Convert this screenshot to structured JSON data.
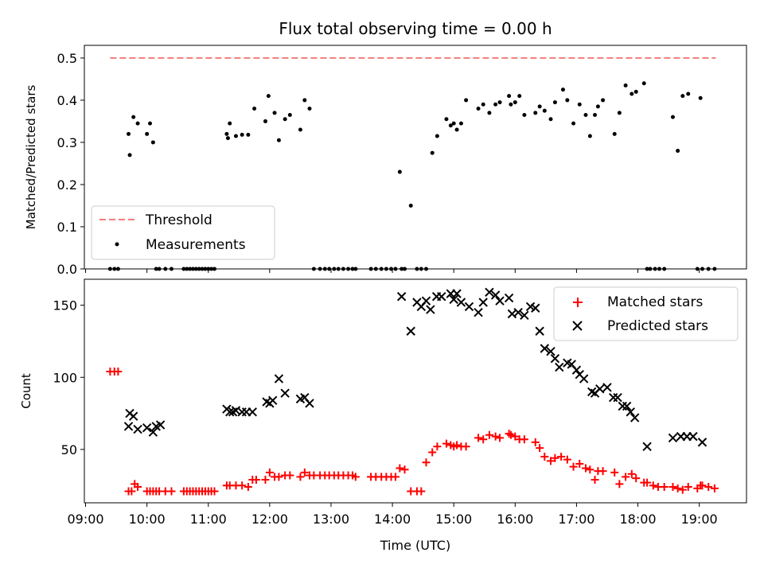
{
  "title": "Flux total observing time = 0.00 h",
  "chart_data": [
    {
      "type": "scatter",
      "title": "Flux total observing time = 0.00 h",
      "xlabel": "",
      "ylabel": "Matched/Predicted stars",
      "xlim": [
        8.98,
        19.77
      ],
      "ylim": [
        0,
        0.53
      ],
      "yticks": [
        0.0,
        0.1,
        0.2,
        0.3,
        0.4,
        0.5
      ],
      "ytick_labels": [
        "0.0",
        "0.1",
        "0.2",
        "0.3",
        "0.4",
        "0.5"
      ],
      "legend": {
        "placement": "lower-left",
        "entries": [
          "Threshold",
          "Measurements"
        ]
      },
      "threshold": {
        "name": "Threshold",
        "value": 0.5,
        "x_range": [
          9.4,
          19.27
        ],
        "color": "#f47c7c"
      },
      "series": [
        {
          "name": "Measurements",
          "color": "#000000",
          "x": [
            9.4,
            9.47,
            9.53,
            9.7,
            9.72,
            9.78,
            9.85,
            10.0,
            10.05,
            10.1,
            10.15,
            10.2,
            10.3,
            10.4,
            10.6,
            10.65,
            10.7,
            10.75,
            10.8,
            10.85,
            10.9,
            10.95,
            11.0,
            11.05,
            11.1,
            11.3,
            11.32,
            11.35,
            11.45,
            11.55,
            11.65,
            11.75,
            11.93,
            11.98,
            12.08,
            12.15,
            12.25,
            12.33,
            12.5,
            12.57,
            12.65,
            12.72,
            12.82,
            12.9,
            12.97,
            13.05,
            13.12,
            13.2,
            13.28,
            13.35,
            13.4,
            13.65,
            13.73,
            13.82,
            13.9,
            13.98,
            14.05,
            14.12,
            14.15,
            14.2,
            14.3,
            14.4,
            14.47,
            14.55,
            14.65,
            14.73,
            14.88,
            14.95,
            15.0,
            15.05,
            15.12,
            15.2,
            15.4,
            15.48,
            15.58,
            15.68,
            15.75,
            15.9,
            15.93,
            16.0,
            16.07,
            16.15,
            16.33,
            16.4,
            16.48,
            16.58,
            16.65,
            16.78,
            16.85,
            16.95,
            17.05,
            17.15,
            17.22,
            17.3,
            17.35,
            17.43,
            17.62,
            17.7,
            17.8,
            17.9,
            17.97,
            18.1,
            18.15,
            18.2,
            18.28,
            18.35,
            18.43,
            18.57,
            18.65,
            18.73,
            18.82,
            18.97,
            19.02,
            19.05,
            19.15,
            19.25
          ],
          "y": [
            0,
            0,
            0,
            0.32,
            0.27,
            0.36,
            0.345,
            0.32,
            0.345,
            0.3,
            0,
            0,
            0,
            0,
            0,
            0,
            0,
            0,
            0,
            0,
            0,
            0,
            0,
            0,
            0,
            0.32,
            0.31,
            0.345,
            0.315,
            0.318,
            0.318,
            0.38,
            0.35,
            0.41,
            0.37,
            0.305,
            0.355,
            0.365,
            0.33,
            0.4,
            0.38,
            0,
            0,
            0,
            0,
            0,
            0,
            0,
            0,
            0,
            0,
            0,
            0,
            0,
            0,
            0,
            0,
            0.23,
            0,
            0,
            0.15,
            0,
            0,
            0,
            0.275,
            0.315,
            0.355,
            0.34,
            0.345,
            0.33,
            0.345,
            0.4,
            0.38,
            0.39,
            0.37,
            0.39,
            0.395,
            0.41,
            0.39,
            0.395,
            0.41,
            0.365,
            0.37,
            0.385,
            0.375,
            0.355,
            0.395,
            0.425,
            0.4,
            0.345,
            0.39,
            0.365,
            0.315,
            0.365,
            0.385,
            0.4,
            0.32,
            0.37,
            0.435,
            0.415,
            0.42,
            0.44,
            0,
            0,
            0,
            0,
            0,
            0.36,
            0.28,
            0.41,
            0.415,
            0,
            0.405,
            0,
            0,
            0
          ]
        }
      ]
    },
    {
      "type": "scatter",
      "title": "",
      "xlabel": "Time (UTC)",
      "ylabel": "Count",
      "xlim": [
        8.98,
        19.77
      ],
      "ylim": [
        13,
        168
      ],
      "yticks": [
        50,
        100,
        150
      ],
      "ytick_labels": [
        "50",
        "100",
        "150"
      ],
      "xticks": [
        9,
        10,
        11,
        12,
        13,
        14,
        15,
        16,
        17,
        18,
        19
      ],
      "xtick_labels": [
        "09:00",
        "10:00",
        "11:00",
        "12:00",
        "13:00",
        "14:00",
        "15:00",
        "16:00",
        "17:00",
        "18:00",
        "19:00"
      ],
      "legend": {
        "placement": "top-right",
        "entries": [
          "Matched stars",
          "Predicted stars"
        ]
      },
      "series": [
        {
          "name": "Matched stars",
          "color": "#ff0000",
          "marker": "plus",
          "x": [
            9.4,
            9.47,
            9.53,
            9.7,
            9.75,
            9.8,
            9.85,
            10.0,
            10.05,
            10.1,
            10.15,
            10.2,
            10.3,
            10.4,
            10.6,
            10.65,
            10.7,
            10.75,
            10.8,
            10.85,
            10.9,
            10.95,
            11.0,
            11.05,
            11.1,
            11.3,
            11.35,
            11.45,
            11.55,
            11.65,
            11.72,
            11.78,
            11.93,
            12.0,
            12.08,
            12.15,
            12.25,
            12.33,
            12.5,
            12.57,
            12.65,
            12.72,
            12.82,
            12.9,
            12.97,
            13.05,
            13.12,
            13.2,
            13.28,
            13.35,
            13.4,
            13.65,
            13.73,
            13.82,
            13.9,
            13.98,
            14.05,
            14.12,
            14.2,
            14.3,
            14.4,
            14.47,
            14.55,
            14.65,
            14.73,
            14.88,
            14.95,
            15.0,
            15.05,
            15.12,
            15.2,
            15.4,
            15.48,
            15.58,
            15.68,
            15.75,
            15.9,
            15.93,
            16.0,
            16.07,
            16.15,
            16.33,
            16.4,
            16.48,
            16.58,
            16.65,
            16.75,
            16.85,
            16.95,
            17.05,
            17.15,
            17.22,
            17.3,
            17.35,
            17.43,
            17.62,
            17.7,
            17.8,
            17.9,
            17.97,
            18.1,
            18.15,
            18.25,
            18.33,
            18.43,
            18.57,
            18.65,
            18.73,
            18.82,
            18.97,
            19.02,
            19.05,
            19.15,
            19.25
          ],
          "y": [
            104,
            104,
            104,
            21,
            21,
            26,
            24,
            21,
            21,
            21,
            21,
            21,
            21,
            21,
            21,
            21,
            21,
            21,
            21,
            21,
            21,
            21,
            21,
            21,
            21,
            25,
            25,
            25,
            25,
            24,
            29,
            29,
            29,
            34,
            31,
            31,
            32,
            32,
            31,
            34,
            32,
            32,
            32,
            32,
            32,
            32,
            32,
            32,
            32,
            32,
            31,
            31,
            31,
            31,
            31,
            31,
            31,
            37,
            36,
            21,
            21,
            21,
            41,
            48,
            52,
            54,
            53,
            52,
            53,
            52,
            52,
            58,
            57,
            60,
            59,
            58,
            61,
            60,
            59,
            57,
            57,
            55,
            51,
            45,
            42,
            44,
            45,
            43,
            38,
            40,
            37,
            36,
            29,
            35,
            35,
            34,
            26,
            31,
            33,
            30,
            27,
            27,
            25,
            24,
            24,
            24,
            23,
            22,
            24,
            23,
            25,
            25,
            24,
            23
          ]
        },
        {
          "name": "Predicted stars",
          "color": "#000000",
          "marker": "x",
          "x": [
            9.7,
            9.72,
            9.78,
            9.85,
            10.0,
            10.1,
            10.15,
            10.22,
            11.3,
            11.35,
            11.4,
            11.45,
            11.55,
            11.62,
            11.72,
            11.95,
            12.0,
            12.05,
            12.15,
            12.25,
            12.5,
            12.57,
            12.65,
            14.15,
            14.3,
            14.4,
            14.47,
            14.55,
            14.62,
            14.72,
            14.8,
            14.95,
            15.0,
            15.05,
            15.12,
            15.25,
            15.4,
            15.48,
            15.58,
            15.68,
            15.75,
            15.9,
            15.95,
            16.05,
            16.15,
            16.25,
            16.33,
            16.4,
            16.48,
            16.58,
            16.65,
            16.72,
            16.85,
            16.92,
            17.0,
            17.05,
            17.12,
            17.25,
            17.3,
            17.38,
            17.5,
            17.6,
            17.67,
            17.75,
            17.82,
            17.88,
            17.95,
            18.15,
            18.57,
            18.7,
            18.8,
            18.9,
            19.05
          ],
          "y": [
            66,
            75,
            73,
            64,
            65,
            62,
            66,
            67,
            78,
            76,
            76,
            77,
            76,
            76,
            76,
            83,
            82,
            84,
            99,
            89,
            85,
            86,
            82,
            156,
            132,
            152,
            149,
            153,
            147,
            156,
            156,
            158,
            154,
            158,
            152,
            149,
            145,
            152,
            159,
            157,
            153,
            155,
            144,
            145,
            143,
            149,
            148,
            132,
            120,
            118,
            113,
            107,
            110,
            109,
            105,
            102,
            99,
            90,
            89,
            92,
            93,
            86,
            86,
            80,
            80,
            76,
            72,
            52,
            58,
            59,
            59,
            59,
            55
          ]
        }
      ]
    }
  ]
}
